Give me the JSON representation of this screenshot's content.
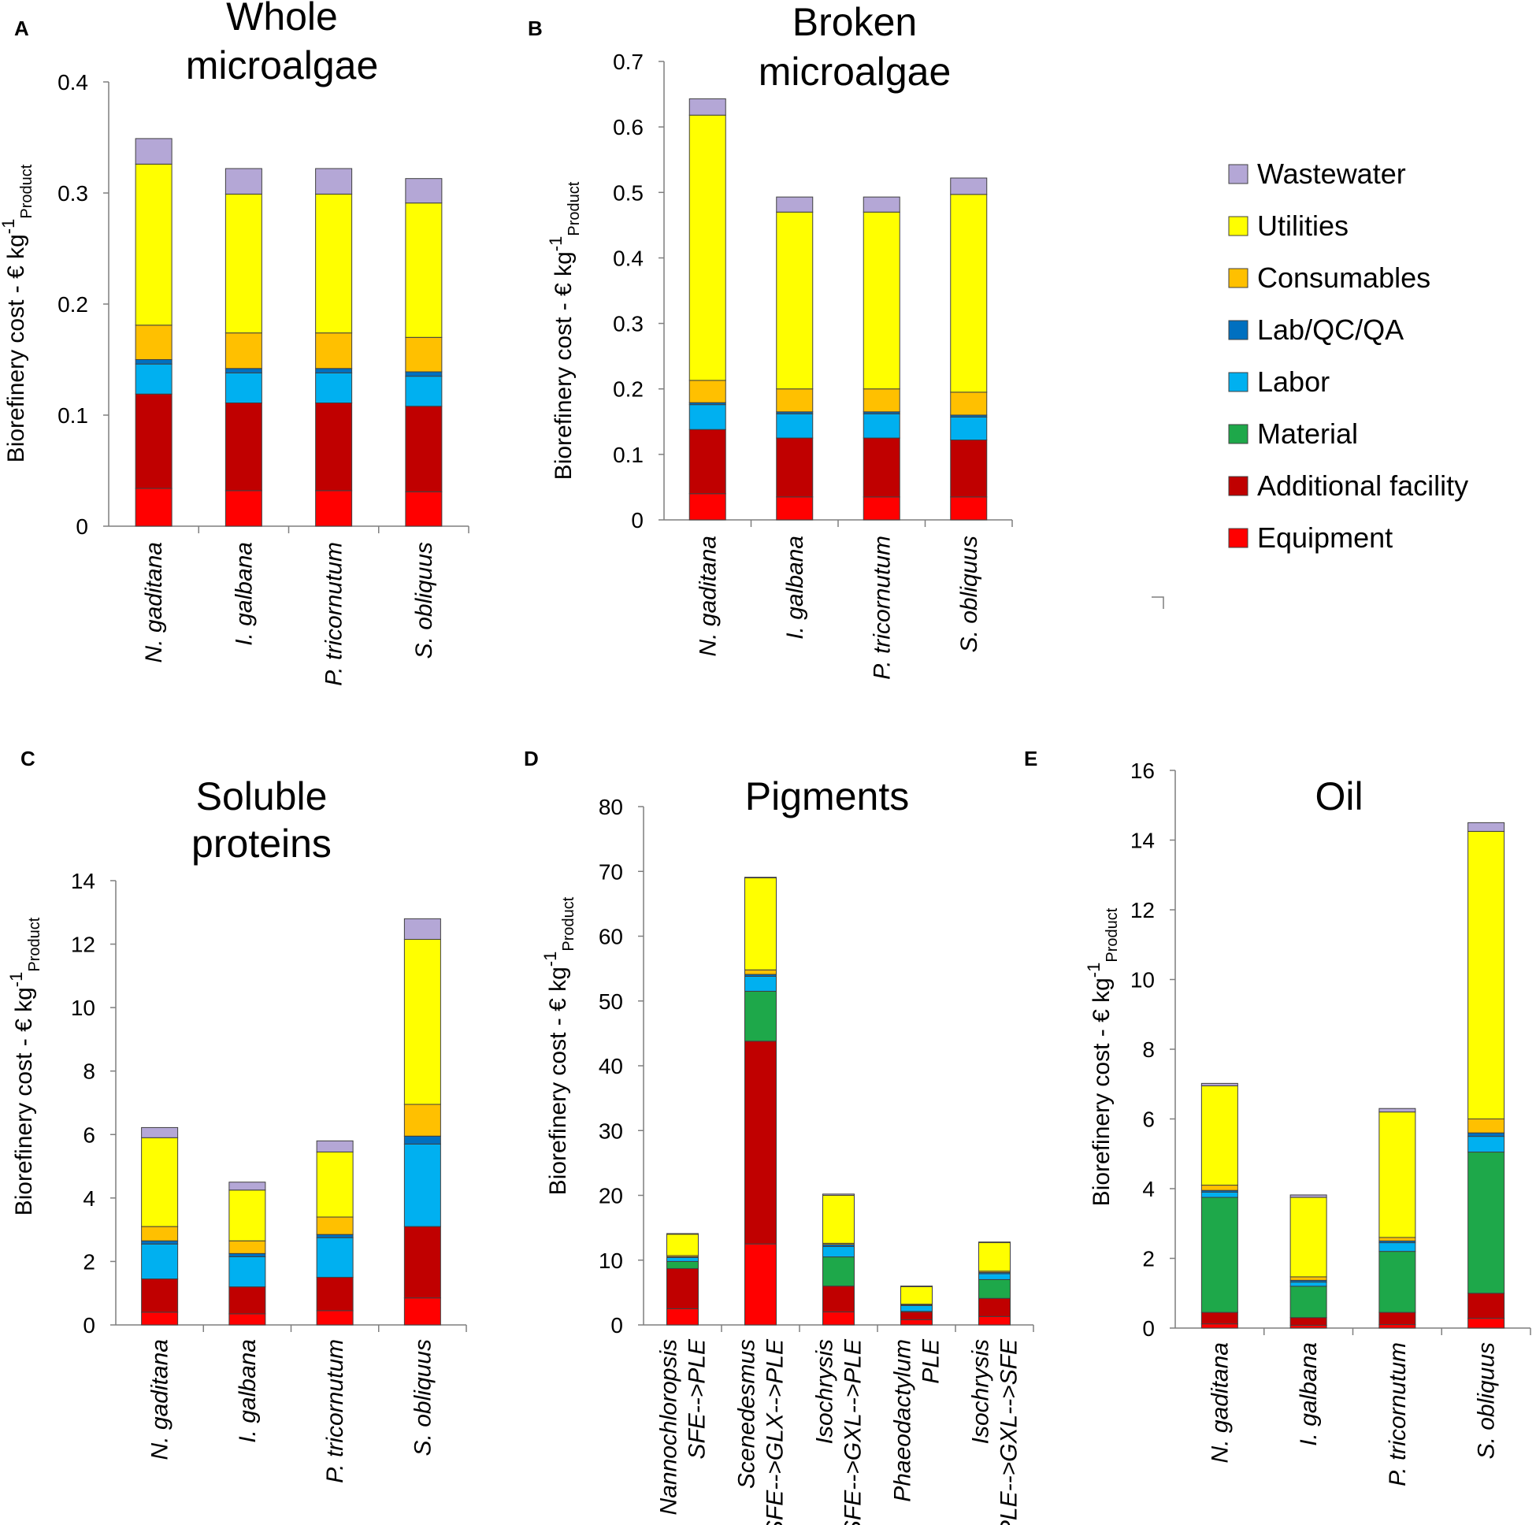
{
  "figure": {
    "components": [
      "Equipment",
      "Additional facility",
      "Material",
      "Labor",
      "Lab/QC/QA",
      "Consumables",
      "Utilities",
      "Wastewater"
    ],
    "colors": {
      "Equipment": "#ff0000",
      "Additional facility": "#c00000",
      "Material": "#1ea84a",
      "Labor": "#00b0f0",
      "Lab/QC/QA": "#0070c0",
      "Consumables": "#ffc000",
      "Utilities": "#ffff00",
      "Wastewater": "#b4a7d6"
    },
    "legend": {
      "order": [
        "Wastewater",
        "Utilities",
        "Consumables",
        "Lab/QC/QA",
        "Labor",
        "Material",
        "Additional facility",
        "Equipment"
      ],
      "placement": "right of panel B"
    },
    "y_axis_label": {
      "main": "Biorefinery cost - € kg",
      "sup": "-1",
      "sub": "Product"
    }
  },
  "chart_data": [
    {
      "type": "bar",
      "stacked": true,
      "panel": "A",
      "title": [
        "Whole",
        "microalgae"
      ],
      "ylim": [
        0,
        0.4
      ],
      "yticks": [
        "0",
        "0.1",
        "0.2",
        "0.3",
        "0.4"
      ],
      "categories": [
        [
          "N. gaditana"
        ],
        [
          "I. galbana"
        ],
        [
          "P. tricornutum"
        ],
        [
          "S. obliquus"
        ]
      ],
      "series": [
        {
          "name": "Equipment",
          "values": [
            0.034,
            0.032,
            0.032,
            0.031
          ]
        },
        {
          "name": "Additional facility",
          "values": [
            0.085,
            0.079,
            0.079,
            0.077
          ]
        },
        {
          "name": "Material",
          "values": [
            0.0,
            0.0,
            0.0,
            0.0
          ]
        },
        {
          "name": "Labor",
          "values": [
            0.027,
            0.027,
            0.027,
            0.027
          ]
        },
        {
          "name": "Lab/QC/QA",
          "values": [
            0.004,
            0.004,
            0.004,
            0.004
          ]
        },
        {
          "name": "Consumables",
          "values": [
            0.031,
            0.032,
            0.032,
            0.031
          ]
        },
        {
          "name": "Utilities",
          "values": [
            0.145,
            0.125,
            0.125,
            0.121
          ]
        },
        {
          "name": "Wastewater",
          "values": [
            0.023,
            0.023,
            0.023,
            0.022
          ]
        }
      ]
    },
    {
      "type": "bar",
      "stacked": true,
      "panel": "B",
      "title": [
        "Broken",
        "microalgae"
      ],
      "ylim": [
        0,
        0.7
      ],
      "yticks": [
        "0",
        "0.1",
        "0.2",
        "0.3",
        "0.4",
        "0.5",
        "0.6",
        "0.7"
      ],
      "categories": [
        [
          "N. gaditana"
        ],
        [
          "I. galbana"
        ],
        [
          "P. tricornutum"
        ],
        [
          "S. obliquus"
        ]
      ],
      "series": [
        {
          "name": "Equipment",
          "values": [
            0.04,
            0.035,
            0.035,
            0.035
          ]
        },
        {
          "name": "Additional facility",
          "values": [
            0.098,
            0.09,
            0.09,
            0.087
          ]
        },
        {
          "name": "Material",
          "values": [
            0.0,
            0.0,
            0.0,
            0.0
          ]
        },
        {
          "name": "Labor",
          "values": [
            0.038,
            0.037,
            0.037,
            0.035
          ]
        },
        {
          "name": "Lab/QC/QA",
          "values": [
            0.003,
            0.003,
            0.003,
            0.003
          ]
        },
        {
          "name": "Consumables",
          "values": [
            0.034,
            0.035,
            0.035,
            0.035
          ]
        },
        {
          "name": "Utilities",
          "values": [
            0.405,
            0.27,
            0.27,
            0.302
          ]
        },
        {
          "name": "Wastewater",
          "values": [
            0.025,
            0.023,
            0.023,
            0.025
          ]
        }
      ]
    },
    {
      "type": "bar",
      "stacked": true,
      "panel": "C",
      "title": [
        "Soluble",
        "proteins"
      ],
      "ylim": [
        0,
        14
      ],
      "yticks": [
        "0",
        "2",
        "4",
        "6",
        "8",
        "10",
        "12",
        "14"
      ],
      "categories": [
        [
          "N. gaditana"
        ],
        [
          "I. galbana"
        ],
        [
          "P. tricornutum"
        ],
        [
          "S. obliquus"
        ]
      ],
      "series": [
        {
          "name": "Equipment",
          "values": [
            0.4,
            0.35,
            0.45,
            0.85
          ]
        },
        {
          "name": "Additional facility",
          "values": [
            1.05,
            0.85,
            1.05,
            2.25
          ]
        },
        {
          "name": "Material",
          "values": [
            0.0,
            0.0,
            0.0,
            0.0
          ]
        },
        {
          "name": "Labor",
          "values": [
            1.1,
            0.95,
            1.25,
            2.6
          ]
        },
        {
          "name": "Lab/QC/QA",
          "values": [
            0.1,
            0.1,
            0.1,
            0.25
          ]
        },
        {
          "name": "Consumables",
          "values": [
            0.45,
            0.4,
            0.55,
            1.0
          ]
        },
        {
          "name": "Utilities",
          "values": [
            2.8,
            1.6,
            2.05,
            5.2
          ]
        },
        {
          "name": "Wastewater",
          "values": [
            0.32,
            0.25,
            0.35,
            0.65
          ]
        }
      ]
    },
    {
      "type": "bar",
      "stacked": true,
      "panel": "D",
      "title": [
        "Pigments"
      ],
      "ylim": [
        0,
        80
      ],
      "yticks": [
        "0",
        "10",
        "20",
        "30",
        "40",
        "50",
        "60",
        "70",
        "80"
      ],
      "categories": [
        [
          "Nannochloropsis",
          "SFE-->PLE"
        ],
        [
          "Scenedesmus",
          "SFE-->GLX-->PLE"
        ],
        [
          "Isochrysis",
          "SFE-->GXL-->PLE"
        ],
        [
          "Phaeodactylum",
          "PLE"
        ],
        [
          "Isochrysis",
          "PLE-->GXL-->SFE"
        ]
      ],
      "series": [
        {
          "name": "Equipment",
          "values": [
            2.5,
            12.5,
            2.0,
            0.8,
            1.3
          ]
        },
        {
          "name": "Additional facility",
          "values": [
            6.2,
            31.3,
            4.0,
            1.2,
            2.8
          ]
        },
        {
          "name": "Material",
          "values": [
            1.1,
            7.7,
            4.5,
            0.1,
            2.9
          ]
        },
        {
          "name": "Labor",
          "values": [
            0.6,
            2.3,
            1.6,
            0.9,
            0.9
          ]
        },
        {
          "name": "Lab/QC/QA",
          "values": [
            0.1,
            0.3,
            0.3,
            0.1,
            0.2
          ]
        },
        {
          "name": "Consumables",
          "values": [
            0.2,
            0.7,
            0.2,
            0.1,
            0.2
          ]
        },
        {
          "name": "Utilities",
          "values": [
            3.3,
            14.2,
            7.4,
            2.7,
            4.4
          ]
        },
        {
          "name": "Wastewater",
          "values": [
            0.1,
            0.1,
            0.2,
            0.1,
            0.1
          ]
        }
      ]
    },
    {
      "type": "bar",
      "stacked": true,
      "panel": "E",
      "title": [
        "Oil"
      ],
      "ylim": [
        0,
        16
      ],
      "yticks": [
        "0",
        "2",
        "4",
        "6",
        "8",
        "10",
        "12",
        "14",
        "16"
      ],
      "categories": [
        [
          "N. gaditana"
        ],
        [
          "I. galbana"
        ],
        [
          "P. tricornutum"
        ],
        [
          "S. obliquus"
        ]
      ],
      "series": [
        {
          "name": "Equipment",
          "values": [
            0.12,
            0.08,
            0.1,
            0.28
          ]
        },
        {
          "name": "Additional facility",
          "values": [
            0.33,
            0.22,
            0.35,
            0.72
          ]
        },
        {
          "name": "Material",
          "values": [
            3.3,
            0.9,
            1.75,
            4.05
          ]
        },
        {
          "name": "Labor",
          "values": [
            0.15,
            0.12,
            0.25,
            0.45
          ]
        },
        {
          "name": "Lab/QC/QA",
          "values": [
            0.05,
            0.05,
            0.05,
            0.1
          ]
        },
        {
          "name": "Consumables",
          "values": [
            0.15,
            0.1,
            0.1,
            0.4
          ]
        },
        {
          "name": "Utilities",
          "values": [
            2.85,
            2.28,
            3.6,
            8.25
          ]
        },
        {
          "name": "Wastewater",
          "values": [
            0.07,
            0.07,
            0.1,
            0.25
          ]
        }
      ]
    }
  ]
}
